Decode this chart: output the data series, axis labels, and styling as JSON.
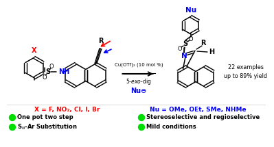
{
  "background_color": "#ffffff",
  "catalyst": "Cu(OTf)₂ (10 mol %)",
  "reaction_type": "5-éxo-dig",
  "nu_anion": "Nu⊖",
  "yield_text": "22 examples\nup to 89% yield",
  "bullet1_left": "One pot two step",
  "bullet2_left": "S_N-Ar Substitution",
  "bullet1_right": "Stereoselective and regioselective",
  "bullet2_right": "Mild conditions",
  "x_subs": "X = F, NO₂, Cl, I, Br",
  "nu_subs": "Nu = OMe, OEt, SMe, NHMe",
  "green": "#00dd00",
  "blue": "#0000ff",
  "red": "#ff0000",
  "black": "#000000"
}
